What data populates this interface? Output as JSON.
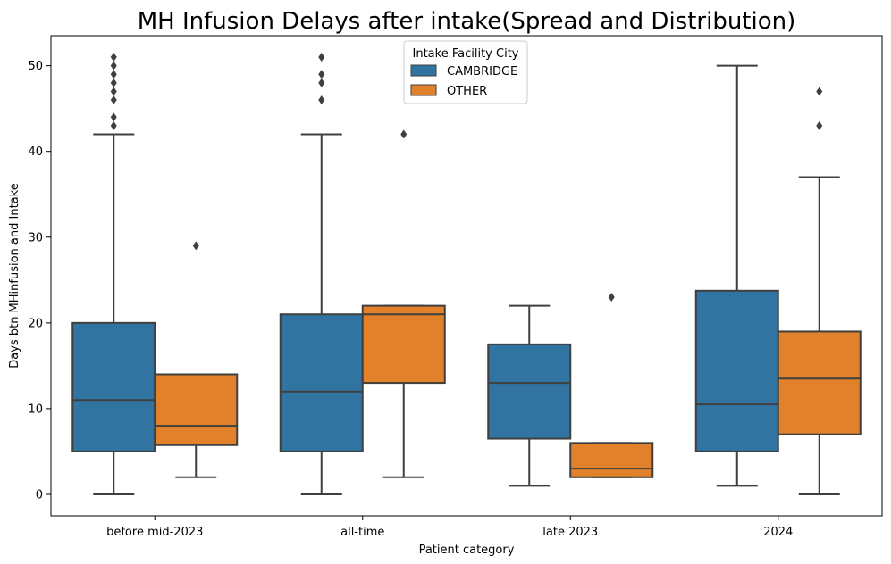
{
  "chart_data": {
    "type": "box",
    "title": "MH Infusion Delays after intake(Spread and Distribution)",
    "xlabel": "Patient category",
    "ylabel": "Days btn MHinfusion and Intake",
    "categories": [
      "before mid-2023",
      "all-time",
      "late 2023",
      "2024"
    ],
    "ylim": [
      -2.5,
      53.5
    ],
    "yticks": [
      0,
      10,
      20,
      30,
      40,
      50
    ],
    "grid": false,
    "legend": {
      "title": "Intake Facility City",
      "position": "top-center"
    },
    "series": [
      {
        "name": "CAMBRIDGE",
        "color": "#3274a1",
        "boxes": [
          {
            "min": 0,
            "q1": 5,
            "median": 11,
            "q3": 20,
            "max": 42,
            "outliers": [
              43,
              44,
              46,
              47,
              48,
              49,
              50,
              51
            ]
          },
          {
            "min": 0,
            "q1": 5,
            "median": 12,
            "q3": 21,
            "max": 42,
            "outliers": [
              46,
              48,
              49,
              51
            ]
          },
          {
            "min": 1,
            "q1": 6.5,
            "median": 13,
            "q3": 17.5,
            "max": 22,
            "outliers": []
          },
          {
            "min": 1,
            "q1": 5,
            "median": 10.5,
            "q3": 23.75,
            "max": 50,
            "outliers": []
          }
        ]
      },
      {
        "name": "OTHER",
        "color": "#e1812c",
        "boxes": [
          {
            "min": 2,
            "q1": 5.75,
            "median": 8,
            "q3": 14,
            "max": 14,
            "outliers": [
              29
            ]
          },
          {
            "min": 2,
            "q1": 13,
            "median": 21,
            "q3": 22,
            "max": 22,
            "outliers": [
              42
            ]
          },
          {
            "min": 2,
            "q1": 2,
            "median": 3,
            "q3": 6,
            "max": 6,
            "outliers": [
              23
            ]
          },
          {
            "min": 0,
            "q1": 7,
            "median": 13.5,
            "q3": 19,
            "max": 37,
            "outliers": [
              43,
              47
            ]
          }
        ]
      }
    ]
  }
}
